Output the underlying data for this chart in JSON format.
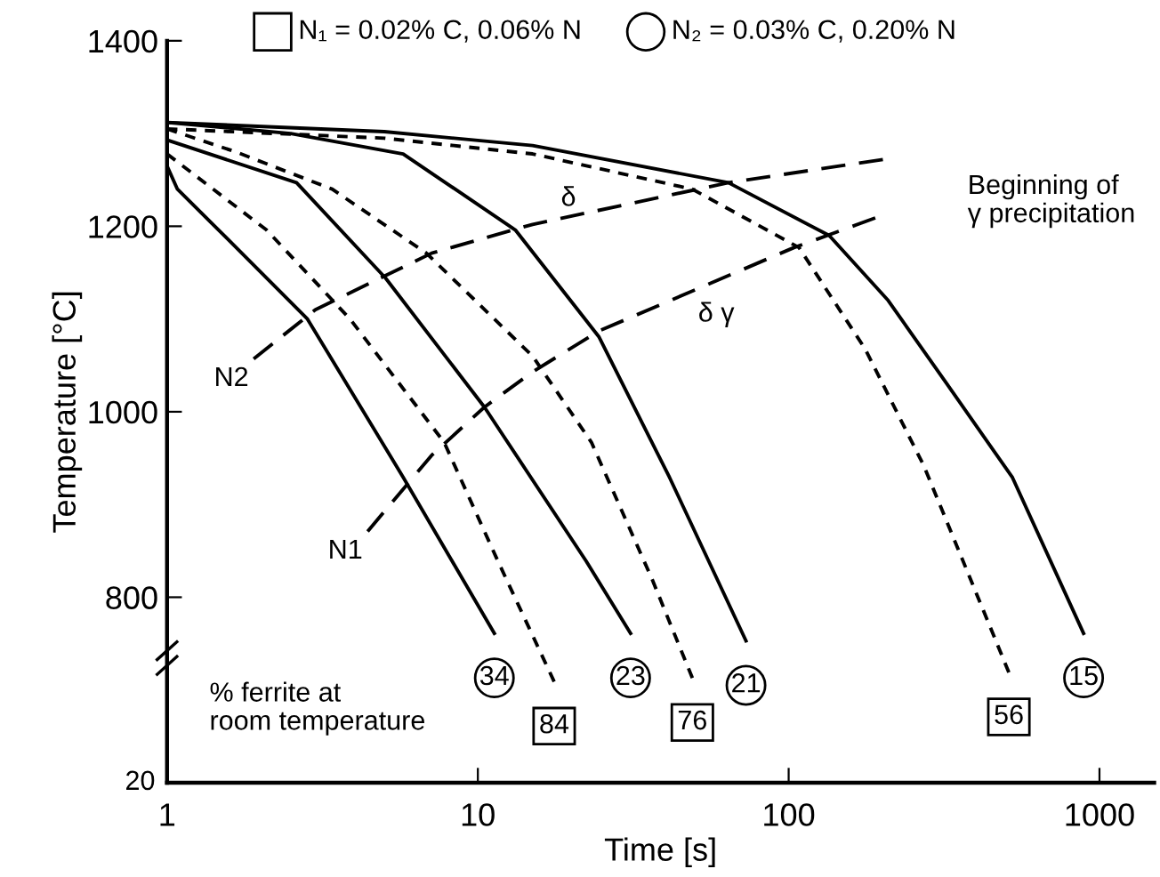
{
  "chart_data": {
    "type": "line",
    "log": "x",
    "xlim": [
      1,
      1500
    ],
    "xticks": [
      1,
      10,
      100,
      1000
    ],
    "ylim": [
      600,
      1400
    ],
    "yticks": [
      800,
      1000,
      1200,
      1400
    ],
    "xlabel": "Time [s]",
    "ylabel": "Temperature [°C]",
    "annotations": [
      "N₁ = 0.02% C, 0.06% N",
      "N₂ = 0.03% C, 0.20% N",
      "δ",
      "δ γ",
      "Beginning of\nγ precipitation",
      "% ferrite at\nroom temperature",
      "20",
      {
        "text": "34",
        "x": 11.3,
        "y": 761
      },
      {
        "text": "84",
        "x": 17.6,
        "y": 709
      },
      {
        "text": "23",
        "x": 31,
        "y": 761
      },
      {
        "text": "76",
        "x": 49,
        "y": 713
      },
      {
        "text": "21",
        "x": 72.9,
        "y": 753
      },
      {
        "text": "56",
        "x": 511,
        "y": 719
      },
      {
        "text": "15",
        "x": 889,
        "y": 761
      }
    ],
    "series": [
      {
        "x": [
          1,
          1.08,
          1.67,
          2.83,
          5.76,
          11.3
        ],
        "values": [
          1265,
          1240,
          1177,
          1100,
          929,
          761
        ],
        "color": "#000000",
        "line_style": "solid"
      },
      {
        "x": [
          1,
          2.09,
          3.88,
          7.79,
          11.6,
          17.6
        ],
        "values": [
          1278,
          1196,
          1100,
          967,
          839,
          709
        ],
        "color": "#000000",
        "line_style": "dotted"
      },
      {
        "x": [
          1,
          2.61,
          5.05,
          10.5,
          22.3,
          31
        ],
        "values": [
          1293,
          1247,
          1144,
          1005,
          839,
          761
        ],
        "color": "#000000",
        "line_style": "solid"
      },
      {
        "x": [
          1,
          1.67,
          3.4,
          6.83,
          15,
          23.2,
          36.3,
          49
        ],
        "values": [
          1305,
          1280,
          1240,
          1171,
          1060,
          967,
          820,
          713
        ],
        "color": "#000000",
        "line_style": "dotted"
      },
      {
        "x": [
          1,
          2.5,
          5.75,
          13.2,
          24.5,
          41.4,
          72.9
        ],
        "values": [
          1312,
          1300,
          1278,
          1196,
          1081,
          929,
          753
        ],
        "color": "#000000",
        "line_style": "solid"
      },
      {
        "x": [
          1,
          5,
          15,
          49,
          108,
          176,
          272,
          511
        ],
        "values": [
          1305,
          1295,
          1278,
          1240,
          1177,
          1068,
          942,
          719
        ],
        "color": "#000000",
        "line_style": "dotted"
      },
      {
        "x": [
          1,
          5,
          15,
          64,
          135,
          209,
          323,
          525,
          889
        ],
        "values": [
          1312,
          1302,
          1287,
          1247,
          1190,
          1120,
          1030,
          929,
          761
        ],
        "color": "#000000",
        "line_style": "solid"
      },
      {
        "name": "N2",
        "x": [
          1.9,
          3,
          7.1,
          15,
          64,
          201
        ],
        "values": [
          1057,
          1110,
          1171,
          1202,
          1247,
          1272
        ],
        "color": "#000000",
        "line_style": "dashed"
      },
      {
        "name": "N1",
        "x": [
          4.42,
          7.1,
          10.5,
          15,
          24.5,
          104,
          190
        ],
        "values": [
          871,
          953,
          1005,
          1043,
          1087,
          1177,
          1209
        ],
        "color": "#000000",
        "line_style": "dashed"
      }
    ]
  }
}
